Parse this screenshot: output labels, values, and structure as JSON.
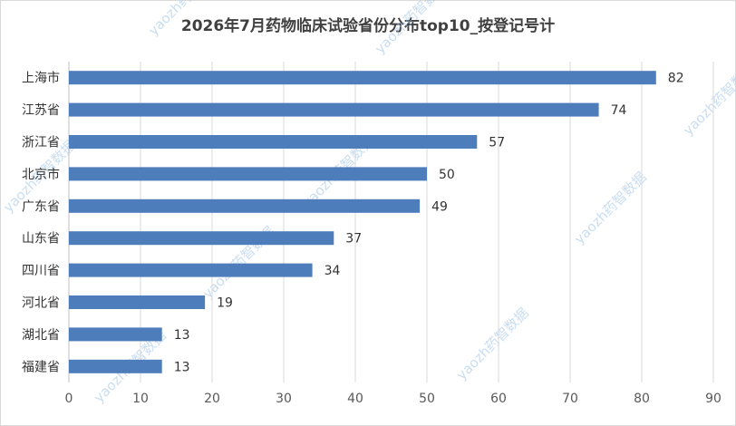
{
  "chart_data": {
    "type": "bar",
    "orientation": "horizontal",
    "title": "2026年7月药物临床试验省份分布top10_按登记号计",
    "categories": [
      "上海市",
      "江苏省",
      "浙江省",
      "北京市",
      "广东省",
      "山东省",
      "四川省",
      "河北省",
      "湖北省",
      "福建省"
    ],
    "values": [
      82,
      74,
      57,
      50,
      49,
      37,
      34,
      19,
      13,
      13
    ],
    "xlim": [
      0,
      90
    ],
    "xticks": [
      0,
      10,
      20,
      30,
      40,
      50,
      60,
      70,
      80,
      90
    ],
    "grid": "vertical",
    "bar_color": "#4e7dbc",
    "data_labels": true
  },
  "watermark": "yaozh药智数据"
}
